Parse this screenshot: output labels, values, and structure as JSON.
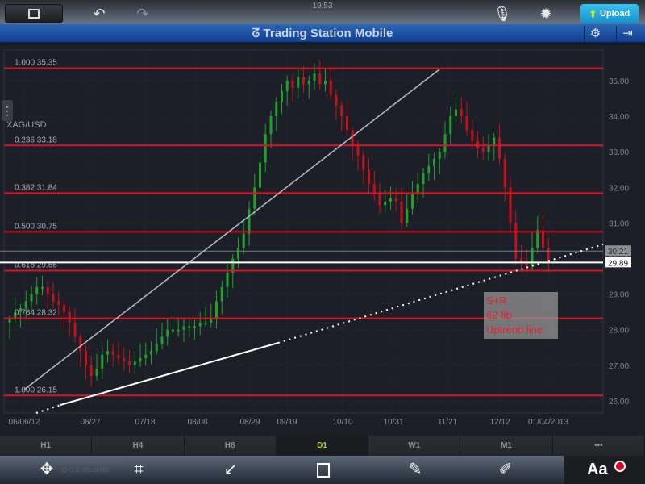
{
  "status_bar": {
    "time": "19:53"
  },
  "top_toolbar": {
    "upload_label": "Upload",
    "icons": [
      "image-icon",
      "undo-icon",
      "redo-icon",
      "microphone-icon",
      "gear-icon",
      "upload-icon"
    ]
  },
  "app_header": {
    "title": "Trading Station Mobile",
    "icons": [
      "logo-icon",
      "settings-icon",
      "logout-icon"
    ]
  },
  "chart": {
    "symbol": "XAG/USD",
    "colors": {
      "up": "#1fa12a",
      "down": "#c8101a",
      "fib": "#e01020",
      "grid": "#2a2e37"
    },
    "current_price": "29.89",
    "marker_price": "30.21",
    "note": [
      "S+R",
      "62 fib",
      "Uptrend line"
    ]
  },
  "chart_data": {
    "type": "candlestick",
    "ylim": [
      25.7,
      35.9
    ],
    "y_ticks": [
      "35.00",
      "34.00",
      "33.00",
      "32.00",
      "31.00",
      "30.00",
      "29.00",
      "28.00",
      "27.00",
      "26.00"
    ],
    "x_ticks": [
      "06/06/12",
      "06/27",
      "07/18",
      "08/08",
      "08/29",
      "09/19",
      "10/10",
      "10/31",
      "11/21",
      "12/12",
      "01/04/2013"
    ],
    "fib_levels": [
      {
        "label": "1.000 35.35",
        "value": 35.35
      },
      {
        "label": "0.236 33.18",
        "value": 33.18
      },
      {
        "label": "0.382 31.84",
        "value": 31.84
      },
      {
        "label": "0.500 30.75",
        "value": 30.75
      },
      {
        "label": "0.618 29.66",
        "value": 29.66
      },
      {
        "label": "0.764 28.32",
        "value": 28.32
      },
      {
        "label": "1.000 26.15",
        "value": 26.15
      }
    ],
    "closes": [
      28.3,
      28.5,
      28.6,
      28.8,
      29.0,
      29.2,
      29.2,
      29.0,
      28.8,
      28.7,
      28.5,
      28.2,
      27.8,
      27.4,
      27.0,
      26.7,
      26.9,
      27.3,
      27.4,
      27.3,
      27.2,
      27.1,
      27.0,
      27.1,
      27.2,
      27.3,
      27.4,
      27.6,
      27.8,
      28.0,
      28.0,
      28.0,
      28.1,
      28.1,
      28.1,
      28.2,
      28.2,
      28.3,
      28.8,
      29.2,
      29.6,
      30.0,
      30.3,
      30.7,
      31.4,
      32.0,
      32.7,
      33.5,
      34.0,
      34.4,
      34.7,
      35.0,
      34.8,
      35.1,
      34.9,
      35.0,
      35.2,
      34.9,
      35.0,
      34.6,
      34.3,
      34.0,
      33.6,
      33.2,
      32.9,
      32.5,
      32.1,
      31.8,
      31.5,
      31.6,
      31.7,
      31.6,
      31.0,
      31.4,
      31.8,
      32.1,
      32.4,
      32.6,
      32.8,
      33.0,
      33.5,
      34.0,
      34.2,
      34.0,
      33.6,
      33.3,
      33.1,
      33.0,
      33.2,
      33.4,
      32.8,
      32.0,
      31.0,
      30.0,
      29.9,
      29.8,
      30.3,
      30.8,
      30.3,
      29.89
    ]
  },
  "timeframes": [
    {
      "label": "H1"
    },
    {
      "label": "H4"
    },
    {
      "label": "H8"
    },
    {
      "label": "D1",
      "active": true
    },
    {
      "label": "W1"
    },
    {
      "label": "M1"
    },
    {
      "label": "•••"
    }
  ],
  "bottom_toolbar": {
    "status": "Refresh rate is set to 0.5 seconds",
    "text_tool": "Aa",
    "icons": [
      "move-icon",
      "crop-icon",
      "arrow-icon",
      "rectangle-icon",
      "pencil-icon",
      "highlighter-icon"
    ]
  }
}
